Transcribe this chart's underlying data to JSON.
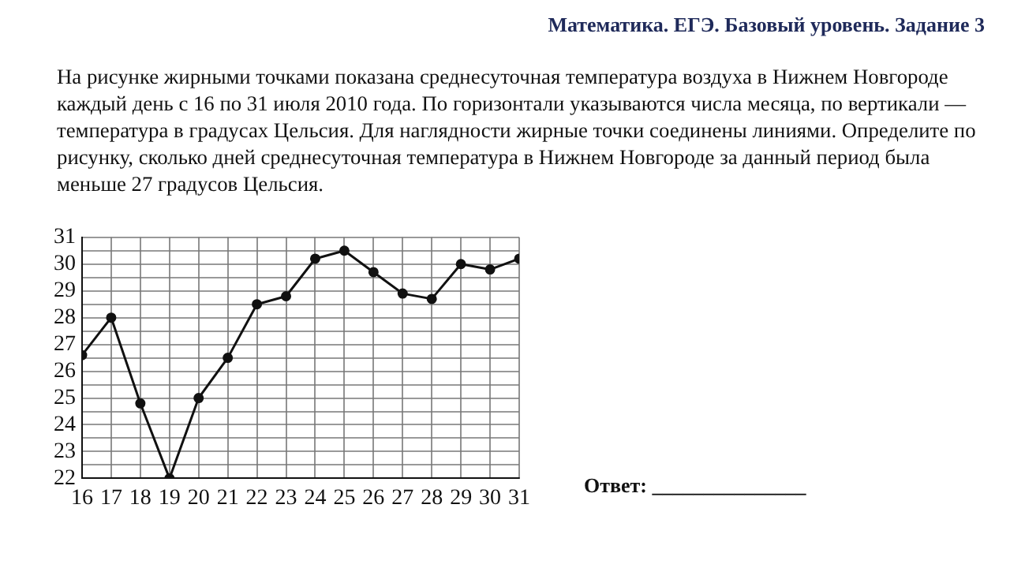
{
  "chart_data": {
    "type": "line",
    "title": "Математика. ЕГЭ. Базовый уровень. Задание 3",
    "subtitle": "На рисунке жирными точками показана среднесуточная температура воздуха в Нижнем Новгороде каждый день с 16 по 31 июля 2010 года. По горизонтали указываются числа месяца, по вертикали — температура в градусах Цельсия. Для наглядности жирные точки соединены линиями. Определите по рисунку, сколько дней среднесуточная температура в Нижнем Новгороде за данный период была меньше 27 градусов Цельсия.",
    "annotations": [
      "Ответ: _______________"
    ],
    "x": [
      16,
      17,
      18,
      19,
      20,
      21,
      22,
      23,
      24,
      25,
      26,
      27,
      28,
      29,
      30,
      31
    ],
    "series": [
      {
        "color": "#111111",
        "values": [
          26.6,
          28,
          24.8,
          22,
          25,
          26.5,
          28.5,
          28.8,
          30.2,
          30.5,
          29.7,
          28.9,
          28.7,
          30,
          29.8,
          30.2
        ]
      }
    ],
    "xlim": [
      16,
      31
    ],
    "xticks": [
      16,
      17,
      18,
      19,
      20,
      21,
      22,
      23,
      24,
      25,
      26,
      27,
      28,
      29,
      30,
      31
    ],
    "ylim": [
      22,
      31
    ],
    "yticks": [
      22,
      {
        "value": 22.5,
        "label": null
      },
      23,
      {
        "value": 23.5,
        "label": null
      },
      24,
      {
        "value": 24.5,
        "label": null
      },
      25,
      {
        "value": 25.5,
        "label": null
      },
      26,
      {
        "value": 26.5,
        "label": null
      },
      27,
      {
        "value": 27.5,
        "label": null
      },
      28,
      {
        "value": 28.5,
        "label": null
      },
      29,
      {
        "value": 29.5,
        "label": null
      },
      30,
      {
        "value": 30.5,
        "label": null
      },
      31
    ],
    "grid": true,
    "legend": false,
    "marker": "circle",
    "line_style": "solid"
  }
}
